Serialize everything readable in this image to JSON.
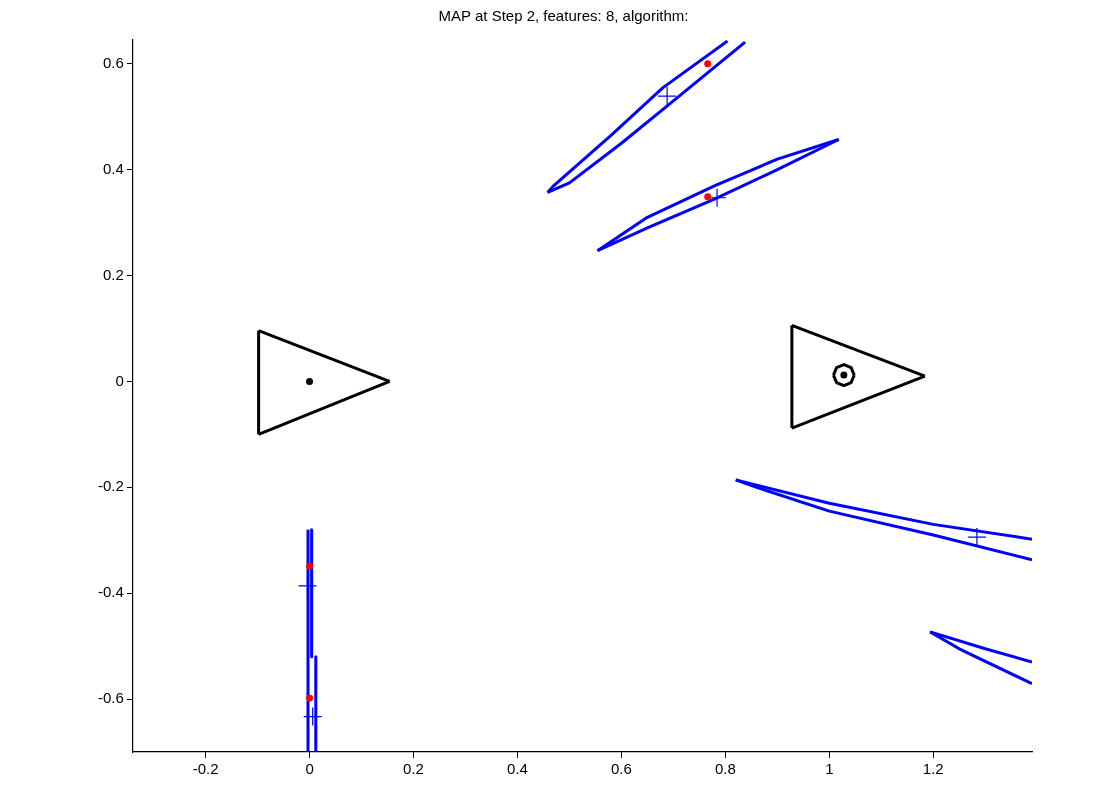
{
  "chart_data": {
    "type": "line",
    "title": "MAP at Step 2, features: 8, algorithm:",
    "xlim": [
      -0.34,
      1.39
    ],
    "ylim": [
      -0.7,
      0.645
    ],
    "xticks": [
      -0.2,
      0,
      0.2,
      0.4,
      0.6,
      0.8,
      1,
      1.2
    ],
    "yticks": [
      -0.6,
      -0.4,
      -0.2,
      0,
      0.2,
      0.4,
      0.6
    ],
    "grid": false,
    "legend": false,
    "series": [
      {
        "color": "#0000ff",
        "x": [
          0.458,
          0.47,
          0.58,
          0.68,
          0.804
        ],
        "values": [
          0.357,
          0.37,
          0.465,
          0.555,
          0.643
        ]
      },
      {
        "color": "#0000ff",
        "x": [
          0.458,
          0.5,
          0.6,
          0.7,
          0.838
        ],
        "values": [
          0.357,
          0.375,
          0.45,
          0.53,
          0.641
        ]
      },
      {
        "color": "#0000ff",
        "x": [
          0.554,
          0.65,
          0.78,
          0.9,
          1.018
        ],
        "values": [
          0.247,
          0.31,
          0.37,
          0.42,
          0.457
        ]
      },
      {
        "color": "#0000ff",
        "x": [
          0.554,
          0.65,
          0.78,
          0.9,
          1.018
        ],
        "values": [
          0.247,
          0.29,
          0.345,
          0.4,
          0.457
        ]
      },
      {
        "color": "#0000ff",
        "x": [
          0.82,
          1.0,
          1.2,
          1.39
        ],
        "values": [
          -0.186,
          -0.23,
          -0.27,
          -0.298
        ]
      },
      {
        "color": "#0000ff",
        "x": [
          0.82,
          0.86,
          1.0,
          1.2,
          1.39
        ],
        "values": [
          -0.186,
          -0.2,
          -0.245,
          -0.29,
          -0.337
        ]
      },
      {
        "color": "#0000ff",
        "x": [
          1.194,
          1.3,
          1.39
        ],
        "values": [
          -0.473,
          -0.505,
          -0.53
        ]
      },
      {
        "color": "#0000ff",
        "x": [
          1.194,
          1.25,
          1.39
        ],
        "values": [
          -0.473,
          -0.505,
          -0.571
        ]
      },
      {
        "color": "#0000ff",
        "x": [
          -0.003,
          -0.003
        ],
        "values": [
          -0.7,
          -0.28
        ]
      },
      {
        "color": "#0000ff",
        "x": [
          0.004,
          0.004
        ],
        "values": [
          -0.28,
          -0.52
        ]
      },
      {
        "color": "#0000ff",
        "x": [
          0.012,
          0.012
        ],
        "values": [
          -0.52,
          -0.7
        ]
      },
      {
        "color": "#000000",
        "x": [
          -0.098,
          0.154
        ],
        "values": [
          0.096,
          0
        ]
      },
      {
        "color": "#000000",
        "x": [
          -0.098,
          0.154
        ],
        "values": [
          -0.1,
          0
        ]
      },
      {
        "color": "#000000",
        "x": [
          -0.098,
          -0.098
        ],
        "values": [
          -0.1,
          0.096
        ]
      },
      {
        "color": "#000000",
        "x": [
          0.928,
          1.184
        ],
        "values": [
          0.106,
          0.01
        ]
      },
      {
        "color": "#000000",
        "x": [
          0.928,
          1.184
        ],
        "values": [
          -0.088,
          0.01
        ]
      },
      {
        "color": "#000000",
        "x": [
          0.928,
          0.928
        ],
        "values": [
          -0.088,
          0.106
        ]
      },
      {
        "color": "#000000",
        "x": [
          1.008,
          1.014,
          1.028,
          1.042,
          1.048
        ],
        "values": [
          0.012,
          0.026,
          0.032,
          0.026,
          0.012
        ]
      },
      {
        "color": "#000000",
        "x": [
          1.008,
          1.014,
          1.028,
          1.042,
          1.048
        ],
        "values": [
          0.012,
          -0.002,
          -0.008,
          -0.002,
          0.012
        ]
      },
      {
        "type": "scatter",
        "marker": "circle",
        "color": "#000000",
        "x": [
          0,
          1.028
        ],
        "values": [
          0,
          0.012
        ]
      },
      {
        "type": "scatter",
        "marker": "circle",
        "color": "#ff0000",
        "x": [
          0.766,
          0.766,
          0,
          0
        ],
        "values": [
          0.6,
          0.349,
          -0.349,
          -0.598
        ]
      },
      {
        "type": "scatter",
        "marker": "cross",
        "color": "#0000ff",
        "x": [
          0.688,
          0.784,
          1.284,
          -0.004,
          0.006
        ],
        "values": [
          0.539,
          0.347,
          -0.294,
          -0.386,
          -0.633
        ]
      }
    ]
  }
}
